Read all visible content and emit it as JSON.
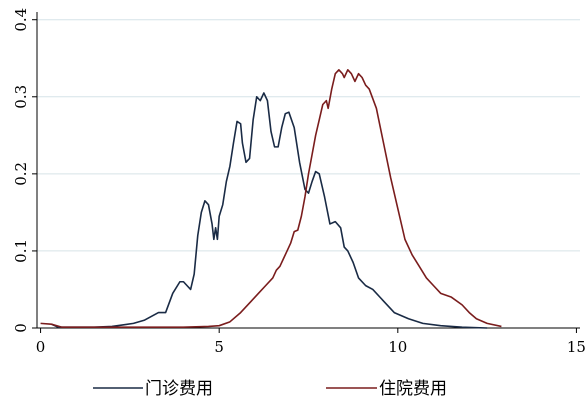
{
  "chart_data": {
    "type": "line",
    "title": "",
    "xlabel": "",
    "ylabel": "",
    "xlim": [
      -0.1,
      15.1
    ],
    "ylim": [
      0,
      0.41
    ],
    "x_ticks": [
      0,
      5,
      10,
      15
    ],
    "y_ticks": [
      0,
      0.1,
      0.2,
      0.3,
      0.4
    ],
    "x_tick_labels": [
      "0",
      "5",
      "10",
      "15"
    ],
    "y_tick_labels": [
      "0",
      "0.1",
      "0.2",
      "0.3",
      "0.4"
    ],
    "grid": "horizontal",
    "legend_position": "bottom",
    "series": [
      {
        "name": "门诊费用",
        "color": "#1a2b45",
        "points": [
          [
            0.3,
            0.005
          ],
          [
            0.5,
            0.001
          ],
          [
            1.0,
            0.001
          ],
          [
            1.5,
            0.001
          ],
          [
            2.0,
            0.002
          ],
          [
            2.3,
            0.004
          ],
          [
            2.6,
            0.006
          ],
          [
            2.9,
            0.01
          ],
          [
            3.1,
            0.015
          ],
          [
            3.3,
            0.02
          ],
          [
            3.5,
            0.02
          ],
          [
            3.7,
            0.045
          ],
          [
            3.9,
            0.06
          ],
          [
            4.0,
            0.06
          ],
          [
            4.1,
            0.055
          ],
          [
            4.2,
            0.05
          ],
          [
            4.3,
            0.07
          ],
          [
            4.4,
            0.12
          ],
          [
            4.5,
            0.15
          ],
          [
            4.6,
            0.165
          ],
          [
            4.7,
            0.16
          ],
          [
            4.8,
            0.135
          ],
          [
            4.85,
            0.115
          ],
          [
            4.9,
            0.13
          ],
          [
            4.95,
            0.115
          ],
          [
            5.0,
            0.145
          ],
          [
            5.1,
            0.16
          ],
          [
            5.2,
            0.19
          ],
          [
            5.3,
            0.21
          ],
          [
            5.4,
            0.24
          ],
          [
            5.5,
            0.268
          ],
          [
            5.6,
            0.265
          ],
          [
            5.65,
            0.24
          ],
          [
            5.75,
            0.215
          ],
          [
            5.85,
            0.22
          ],
          [
            5.95,
            0.27
          ],
          [
            6.05,
            0.3
          ],
          [
            6.15,
            0.295
          ],
          [
            6.25,
            0.305
          ],
          [
            6.35,
            0.295
          ],
          [
            6.45,
            0.255
          ],
          [
            6.55,
            0.235
          ],
          [
            6.65,
            0.235
          ],
          [
            6.75,
            0.26
          ],
          [
            6.85,
            0.278
          ],
          [
            6.95,
            0.28
          ],
          [
            7.1,
            0.26
          ],
          [
            7.25,
            0.215
          ],
          [
            7.4,
            0.18
          ],
          [
            7.5,
            0.175
          ],
          [
            7.6,
            0.19
          ],
          [
            7.7,
            0.203
          ],
          [
            7.8,
            0.2
          ],
          [
            7.95,
            0.17
          ],
          [
            8.1,
            0.135
          ],
          [
            8.25,
            0.138
          ],
          [
            8.4,
            0.13
          ],
          [
            8.5,
            0.105
          ],
          [
            8.6,
            0.1
          ],
          [
            8.75,
            0.085
          ],
          [
            8.9,
            0.065
          ],
          [
            9.1,
            0.055
          ],
          [
            9.3,
            0.05
          ],
          [
            9.6,
            0.035
          ],
          [
            9.9,
            0.02
          ],
          [
            10.3,
            0.012
          ],
          [
            10.7,
            0.006
          ],
          [
            11.2,
            0.003
          ],
          [
            11.8,
            0.001
          ],
          [
            12.5,
            0.0
          ]
        ]
      },
      {
        "name": "住院费用",
        "color": "#7a1d1d",
        "points": [
          [
            0.0,
            0.006
          ],
          [
            0.3,
            0.005
          ],
          [
            0.6,
            0.001
          ],
          [
            1.0,
            0.001
          ],
          [
            2.0,
            0.001
          ],
          [
            3.0,
            0.001
          ],
          [
            4.0,
            0.001
          ],
          [
            4.7,
            0.002
          ],
          [
            5.0,
            0.003
          ],
          [
            5.3,
            0.008
          ],
          [
            5.6,
            0.02
          ],
          [
            5.9,
            0.035
          ],
          [
            6.1,
            0.045
          ],
          [
            6.3,
            0.055
          ],
          [
            6.5,
            0.065
          ],
          [
            6.6,
            0.075
          ],
          [
            6.7,
            0.08
          ],
          [
            6.8,
            0.09
          ],
          [
            6.9,
            0.1
          ],
          [
            7.0,
            0.11
          ],
          [
            7.1,
            0.125
          ],
          [
            7.2,
            0.127
          ],
          [
            7.3,
            0.145
          ],
          [
            7.4,
            0.17
          ],
          [
            7.5,
            0.2
          ],
          [
            7.6,
            0.225
          ],
          [
            7.7,
            0.25
          ],
          [
            7.8,
            0.27
          ],
          [
            7.9,
            0.29
          ],
          [
            8.0,
            0.295
          ],
          [
            8.05,
            0.285
          ],
          [
            8.15,
            0.31
          ],
          [
            8.25,
            0.33
          ],
          [
            8.35,
            0.335
          ],
          [
            8.45,
            0.33
          ],
          [
            8.5,
            0.325
          ],
          [
            8.6,
            0.335
          ],
          [
            8.7,
            0.33
          ],
          [
            8.8,
            0.32
          ],
          [
            8.9,
            0.33
          ],
          [
            9.0,
            0.325
          ],
          [
            9.1,
            0.315
          ],
          [
            9.2,
            0.31
          ],
          [
            9.4,
            0.285
          ],
          [
            9.6,
            0.24
          ],
          [
            9.8,
            0.195
          ],
          [
            10.0,
            0.155
          ],
          [
            10.2,
            0.115
          ],
          [
            10.4,
            0.095
          ],
          [
            10.6,
            0.08
          ],
          [
            10.8,
            0.065
          ],
          [
            11.0,
            0.055
          ],
          [
            11.2,
            0.045
          ],
          [
            11.5,
            0.04
          ],
          [
            11.8,
            0.03
          ],
          [
            12.0,
            0.02
          ],
          [
            12.2,
            0.012
          ],
          [
            12.5,
            0.006
          ],
          [
            12.9,
            0.002
          ]
        ]
      }
    ]
  }
}
